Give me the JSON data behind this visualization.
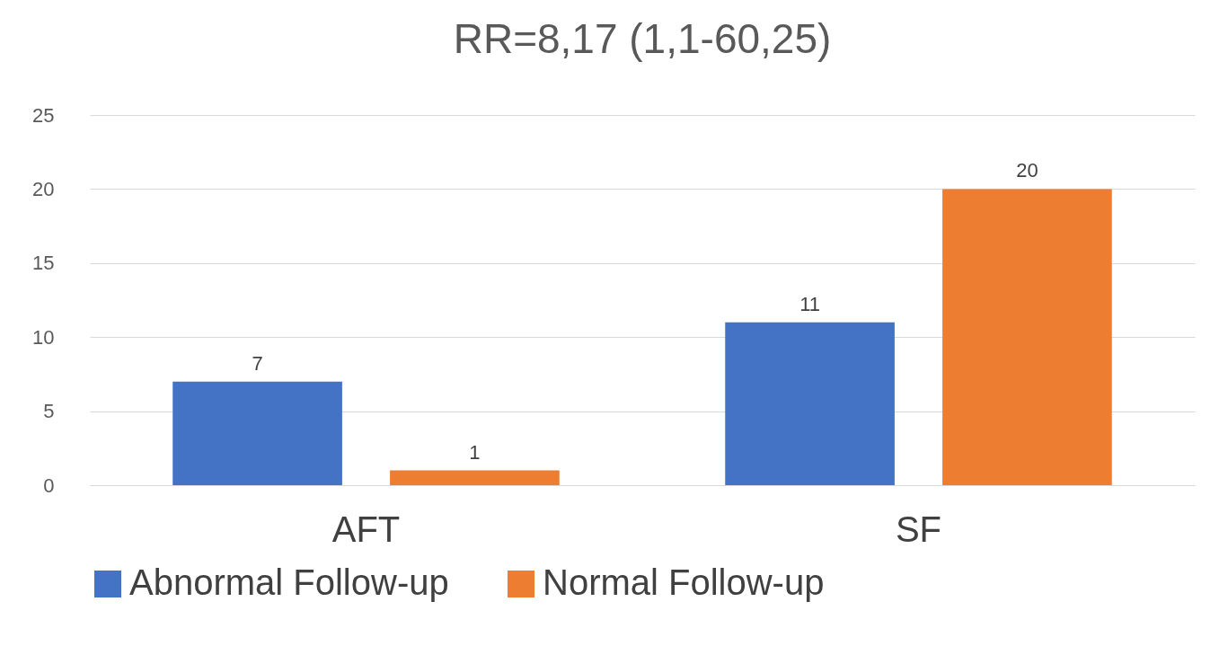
{
  "chart_data": {
    "type": "bar",
    "title": "RR=8,17 (1,1-60,25)",
    "categories": [
      "AFT",
      "SF"
    ],
    "series": [
      {
        "name": "Abnormal Follow-up",
        "color": "#4472c4",
        "values": [
          7,
          11
        ]
      },
      {
        "name": "Normal Follow-up",
        "color": "#ed7d31",
        "values": [
          1,
          20
        ]
      }
    ],
    "ylim": [
      0,
      25
    ],
    "yticks": [
      0,
      5,
      10,
      15,
      20,
      25
    ],
    "grid": "y",
    "legend": "bottom",
    "data_labels": true
  }
}
